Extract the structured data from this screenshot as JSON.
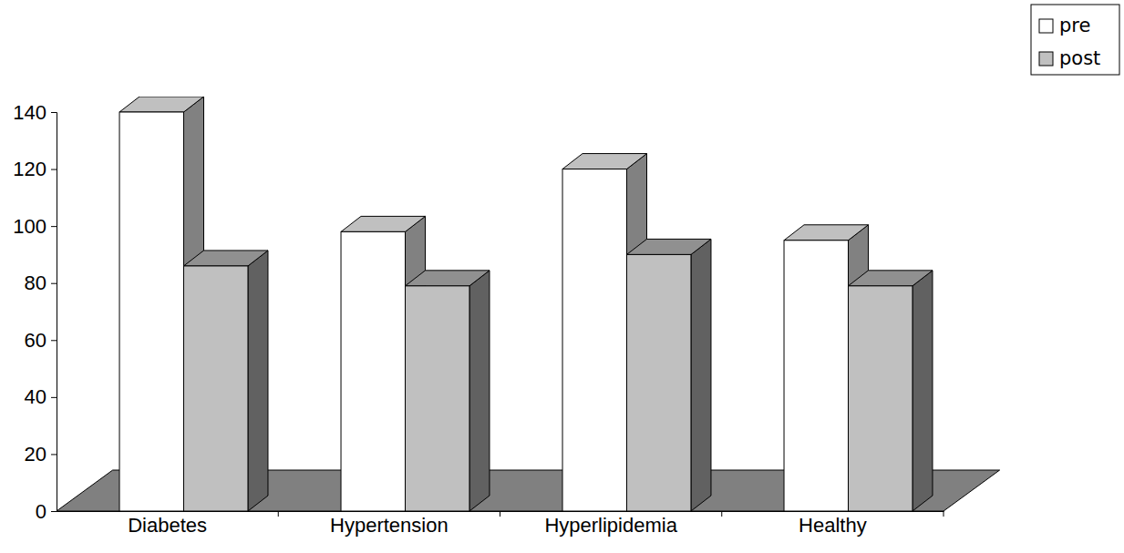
{
  "chart_data": {
    "type": "bar",
    "categories": [
      "Diabetes",
      "Hypertension",
      "Hyperlipidemia",
      "Healthy"
    ],
    "series": [
      {
        "name": "pre",
        "color": "#ffffff",
        "values": [
          140,
          98,
          120,
          95
        ]
      },
      {
        "name": "post",
        "color": "#c0c0c0",
        "values": [
          86,
          79,
          90,
          79
        ]
      }
    ],
    "ylim": [
      0,
      140
    ],
    "yticks": [
      0,
      20,
      40,
      60,
      80,
      100,
      120,
      140
    ],
    "grid": false,
    "legend": "top-right"
  }
}
